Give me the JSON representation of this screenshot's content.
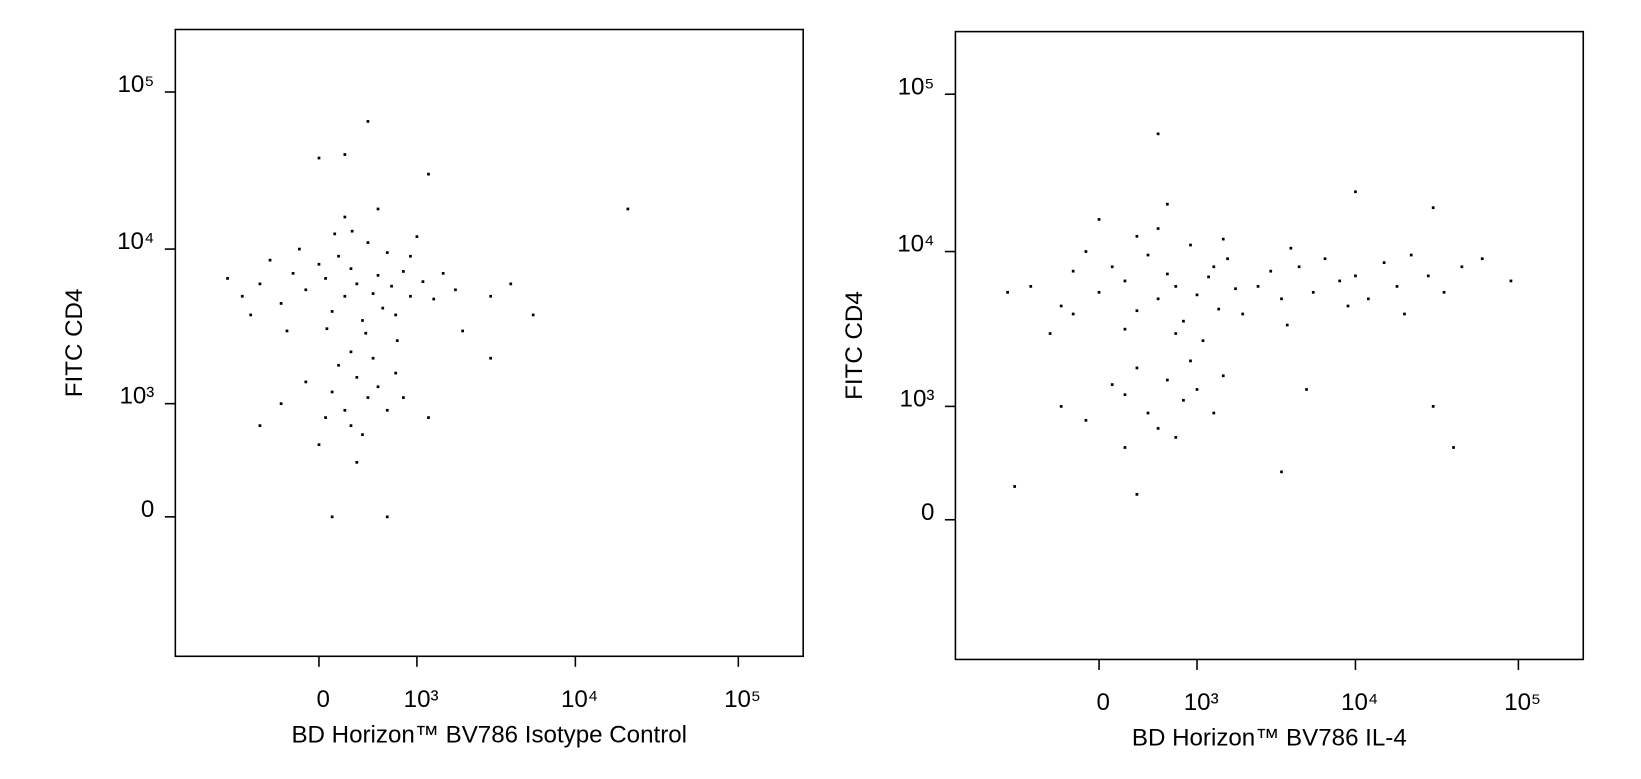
{
  "chart_data": [
    {
      "type": "scatter",
      "xlabel": "BD Horizon™ BV786 Isotype Control",
      "ylabel": "FITC CD4",
      "xscale": "biexponential",
      "yscale": "biexponential",
      "color": "#000000",
      "xlim": [
        -2000,
        250000
      ],
      "ylim": [
        -1500,
        250000
      ],
      "xticks": [
        0,
        {
          "value": 1000,
          "label": "10³"
        },
        {
          "value": 10000,
          "label": "10⁴"
        },
        {
          "value": 100000,
          "label": "10⁵"
        }
      ],
      "yticks": [
        0,
        {
          "value": 1000,
          "label": "10³"
        },
        {
          "value": 10000,
          "label": "10⁴"
        },
        {
          "value": 100000,
          "label": "10⁵"
        }
      ],
      "x": [
        -500,
        -300,
        -200,
        -100,
        0,
        50,
        100,
        150,
        200,
        250,
        300,
        350,
        400,
        450,
        500,
        550,
        600,
        650,
        700,
        800,
        900,
        1000,
        1100,
        1300,
        -700,
        -400,
        -600,
        120,
        260,
        -150,
        380,
        720,
        60,
        -250,
        900,
        1500,
        1800,
        2000,
        -900,
        200,
        500,
        100,
        200,
        300,
        400,
        250,
        150,
        500,
        350,
        -100,
        50,
        600,
        700,
        -300,
        450,
        0,
        300,
        800,
        1200,
        -500,
        250,
        200,
        0,
        400,
        1200,
        21000,
        3000,
        5500,
        4000,
        3000,
        100,
        600
      ],
      "values": [
        6000,
        4500,
        7000,
        5500,
        8000,
        6500,
        4000,
        9000,
        5000,
        7500,
        6000,
        3500,
        11000,
        5200,
        6800,
        4200,
        9500,
        5800,
        3800,
        7200,
        5000,
        12000,
        6200,
        4800,
        5000,
        8500,
        3800,
        12500,
        13000,
        10000,
        2900,
        2600,
        3100,
        3000,
        9000,
        7000,
        5500,
        3000,
        6500,
        16000,
        18000,
        1200,
        900,
        1500,
        1100,
        700,
        1800,
        1300,
        600,
        1400,
        800,
        900,
        1600,
        1000,
        2000,
        500,
        350,
        1100,
        800,
        700,
        2200,
        40000,
        38000,
        65000,
        30000,
        18000,
        5000,
        3800,
        6000,
        2000,
        0,
        0
      ]
    },
    {
      "type": "scatter",
      "xlabel": "BD Horizon™ BV786 IL-4",
      "ylabel": "FITC CD4",
      "xscale": "biexponential",
      "yscale": "biexponential",
      "color": "#000000",
      "xlim": [
        -2000,
        250000
      ],
      "ylim": [
        -1500,
        250000
      ],
      "xticks": [
        0,
        {
          "value": 1000,
          "label": "10³"
        },
        {
          "value": 10000,
          "label": "10⁴"
        },
        {
          "value": 100000,
          "label": "10⁵"
        }
      ],
      "yticks": [
        0,
        {
          "value": 1000,
          "label": "10³"
        },
        {
          "value": 10000,
          "label": "10⁴"
        },
        {
          "value": 100000,
          "label": "10⁵"
        }
      ],
      "x": [
        -600,
        -300,
        -200,
        0,
        100,
        200,
        300,
        400,
        500,
        600,
        700,
        800,
        900,
        1000,
        1200,
        1400,
        1600,
        1800,
        2000,
        300,
        500,
        -100,
        700,
        1100,
        200,
        -400,
        1500,
        0,
        600,
        -900,
        1300,
        -200,
        2500,
        3000,
        3500,
        4500,
        5500,
        6500,
        8000,
        10000,
        12000,
        15000,
        18000,
        22000,
        28000,
        35000,
        45000,
        60000,
        90000,
        20000,
        9000,
        4000,
        30000,
        10000,
        3800,
        200,
        400,
        600,
        800,
        500,
        300,
        1000,
        700,
        100,
        -100,
        1300,
        1500,
        -300,
        900,
        200,
        500,
        -800,
        3500,
        40000,
        30000,
        5000,
        300
      ],
      "values": [
        6000,
        4500,
        7500,
        5500,
        8000,
        6500,
        4200,
        9500,
        5000,
        7200,
        6000,
        3600,
        11000,
        5300,
        6900,
        4300,
        9000,
        5800,
        4000,
        12500,
        14000,
        10000,
        3000,
        2700,
        3200,
        3000,
        12000,
        16000,
        20000,
        5500,
        8000,
        4000,
        6000,
        7500,
        5000,
        8000,
        5500,
        9000,
        6500,
        7000,
        5000,
        8500,
        6000,
        9500,
        7000,
        5500,
        8000,
        9000,
        6500,
        4000,
        4500,
        10500,
        19000,
        24000,
        3400,
        1200,
        900,
        1500,
        1100,
        700,
        1800,
        1300,
        600,
        1400,
        800,
        900,
        1600,
        1000,
        2000,
        500,
        56000,
        200,
        300,
        500,
        1000,
        1300,
        150
      ]
    }
  ]
}
